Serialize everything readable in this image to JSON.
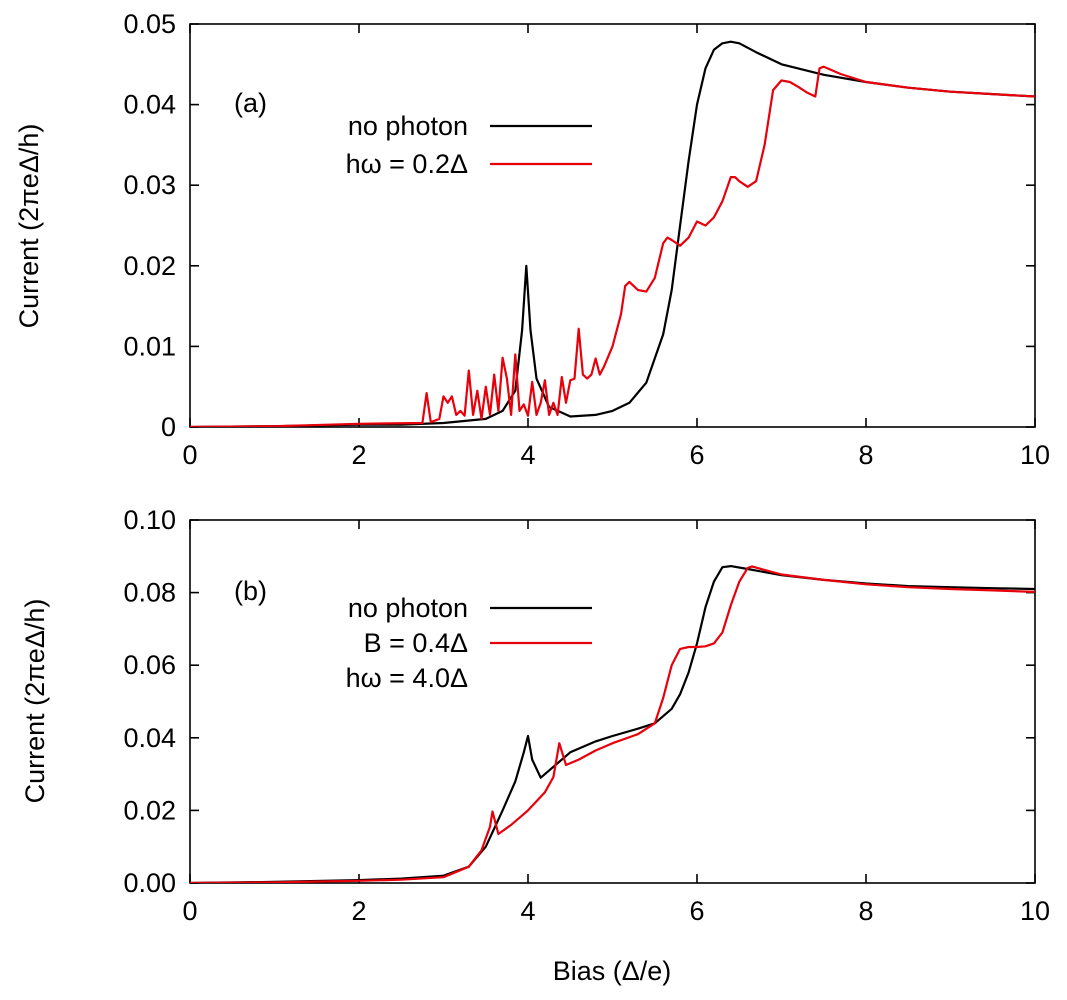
{
  "chart_data": [
    {
      "type": "line",
      "panel_label": "(a)",
      "xlabel": "",
      "ylabel": "Current (2πeΔ/h)",
      "xlim": [
        0,
        10
      ],
      "ylim": [
        0,
        0.05
      ],
      "xticks": [
        0,
        2,
        4,
        6,
        8,
        10
      ],
      "xtick_labels": [
        "0",
        "2",
        "4",
        "6",
        "8",
        "10"
      ],
      "yticks": [
        0,
        0.01,
        0.02,
        0.03,
        0.04,
        0.05
      ],
      "ytick_labels": [
        "0",
        "0.01",
        "0.02",
        "0.03",
        "0.04",
        "0.05"
      ],
      "legend_position": "top-left",
      "legend_extra_text": [],
      "series": [
        {
          "name": "no photon",
          "color": "#000000",
          "x": [
            0.0,
            1.0,
            2.0,
            2.5,
            3.0,
            3.5,
            3.7,
            3.85,
            3.93,
            3.98,
            4.03,
            4.1,
            4.25,
            4.5,
            4.8,
            5.0,
            5.2,
            5.4,
            5.6,
            5.7,
            5.8,
            5.9,
            6.0,
            6.1,
            6.2,
            6.3,
            6.4,
            6.5,
            6.7,
            7.0,
            7.5,
            8.0,
            8.5,
            9.0,
            9.5,
            10.0
          ],
          "y": [
            0.0,
            0.0001,
            0.0003,
            0.0003,
            0.0005,
            0.001,
            0.002,
            0.0045,
            0.012,
            0.02,
            0.012,
            0.006,
            0.0025,
            0.0013,
            0.0015,
            0.002,
            0.003,
            0.0055,
            0.0115,
            0.017,
            0.025,
            0.033,
            0.04,
            0.0445,
            0.0468,
            0.0476,
            0.0478,
            0.0476,
            0.0465,
            0.045,
            0.0437,
            0.0428,
            0.0421,
            0.0416,
            0.0413,
            0.041
          ]
        },
        {
          "name": "hω = 0.2Δ",
          "color": "#e8000b",
          "x": [
            0.0,
            1.0,
            2.0,
            2.75,
            2.8,
            2.85,
            2.95,
            3.0,
            3.05,
            3.1,
            3.15,
            3.2,
            3.25,
            3.3,
            3.35,
            3.4,
            3.45,
            3.5,
            3.55,
            3.6,
            3.65,
            3.7,
            3.75,
            3.8,
            3.85,
            3.9,
            3.95,
            4.0,
            4.05,
            4.1,
            4.15,
            4.2,
            4.25,
            4.3,
            4.35,
            4.4,
            4.45,
            4.5,
            4.55,
            4.6,
            4.65,
            4.7,
            4.75,
            4.8,
            4.85,
            4.9,
            5.0,
            5.1,
            5.15,
            5.2,
            5.3,
            5.4,
            5.5,
            5.6,
            5.65,
            5.7,
            5.8,
            5.9,
            6.0,
            6.1,
            6.2,
            6.3,
            6.4,
            6.45,
            6.5,
            6.6,
            6.7,
            6.8,
            6.9,
            7.0,
            7.1,
            7.2,
            7.3,
            7.4,
            7.45,
            7.5,
            7.7,
            8.0,
            8.5,
            9.0,
            9.5,
            10.0
          ],
          "y": [
            0.0,
            0.0001,
            0.0004,
            0.0005,
            0.0042,
            0.0006,
            0.001,
            0.0038,
            0.003,
            0.0038,
            0.0015,
            0.002,
            0.0014,
            0.007,
            0.0015,
            0.0045,
            0.001,
            0.005,
            0.0015,
            0.0065,
            0.002,
            0.0086,
            0.006,
            0.0015,
            0.009,
            0.002,
            0.0028,
            0.0014,
            0.0056,
            0.0015,
            0.003,
            0.0058,
            0.0015,
            0.003,
            0.0015,
            0.0062,
            0.003,
            0.0058,
            0.006,
            0.0122,
            0.0065,
            0.006,
            0.0065,
            0.0085,
            0.0065,
            0.0075,
            0.01,
            0.014,
            0.0175,
            0.018,
            0.017,
            0.0168,
            0.0185,
            0.0228,
            0.0235,
            0.0232,
            0.0225,
            0.0235,
            0.0255,
            0.025,
            0.026,
            0.028,
            0.031,
            0.031,
            0.0305,
            0.0298,
            0.0305,
            0.035,
            0.0418,
            0.043,
            0.0428,
            0.0422,
            0.0415,
            0.041,
            0.0445,
            0.0447,
            0.0438,
            0.0428,
            0.0421,
            0.0416,
            0.0413,
            0.041
          ]
        }
      ]
    },
    {
      "type": "line",
      "panel_label": "(b)",
      "xlabel": "Bias (Δ/e)",
      "ylabel": "Current (2πeΔ/h)",
      "xlim": [
        0,
        10
      ],
      "ylim": [
        0,
        0.1
      ],
      "xticks": [
        0,
        2,
        4,
        6,
        8,
        10
      ],
      "xtick_labels": [
        "0",
        "2",
        "4",
        "6",
        "8",
        "10"
      ],
      "yticks": [
        0,
        0.02,
        0.04,
        0.06,
        0.08,
        0.1
      ],
      "ytick_labels": [
        "0.00",
        "0.02",
        "0.04",
        "0.06",
        "0.08",
        "0.10"
      ],
      "legend_position": "top-left",
      "legend_extra_text": [
        "hω = 4.0Δ"
      ],
      "series": [
        {
          "name": "no photon",
          "color": "#000000",
          "x": [
            0.0,
            1.0,
            2.0,
            2.5,
            3.0,
            3.3,
            3.5,
            3.7,
            3.85,
            3.95,
            4.0,
            4.05,
            4.15,
            4.3,
            4.5,
            4.8,
            5.0,
            5.3,
            5.5,
            5.7,
            5.8,
            5.9,
            6.0,
            6.1,
            6.2,
            6.3,
            6.4,
            6.6,
            7.0,
            7.5,
            8.0,
            8.5,
            9.0,
            9.5,
            10.0
          ],
          "y": [
            0.0,
            0.0003,
            0.0008,
            0.0012,
            0.002,
            0.0045,
            0.01,
            0.02,
            0.028,
            0.036,
            0.0405,
            0.034,
            0.029,
            0.032,
            0.036,
            0.039,
            0.0405,
            0.0425,
            0.044,
            0.048,
            0.052,
            0.058,
            0.066,
            0.076,
            0.083,
            0.087,
            0.0873,
            0.0865,
            0.0848,
            0.0835,
            0.0825,
            0.0818,
            0.0815,
            0.0812,
            0.081
          ]
        },
        {
          "name": "B = 0.4Δ",
          "color": "#e8000b",
          "x": [
            0.0,
            1.0,
            2.0,
            2.5,
            3.0,
            3.3,
            3.45,
            3.55,
            3.58,
            3.65,
            3.8,
            4.0,
            4.2,
            4.3,
            4.37,
            4.45,
            4.6,
            4.8,
            5.0,
            5.3,
            5.5,
            5.6,
            5.7,
            5.8,
            5.9,
            6.0,
            6.1,
            6.2,
            6.3,
            6.4,
            6.5,
            6.6,
            6.65,
            6.7,
            7.0,
            7.5,
            8.0,
            8.5,
            9.0,
            9.5,
            10.0
          ],
          "y": [
            0.0,
            0.0002,
            0.0006,
            0.0009,
            0.0016,
            0.0045,
            0.009,
            0.0155,
            0.0197,
            0.0135,
            0.016,
            0.02,
            0.025,
            0.0292,
            0.0385,
            0.0325,
            0.034,
            0.0365,
            0.0385,
            0.041,
            0.044,
            0.051,
            0.06,
            0.0645,
            0.065,
            0.065,
            0.0652,
            0.066,
            0.069,
            0.0765,
            0.083,
            0.0868,
            0.0872,
            0.0869,
            0.085,
            0.0835,
            0.0823,
            0.0815,
            0.081,
            0.0806,
            0.0802
          ]
        }
      ]
    }
  ]
}
